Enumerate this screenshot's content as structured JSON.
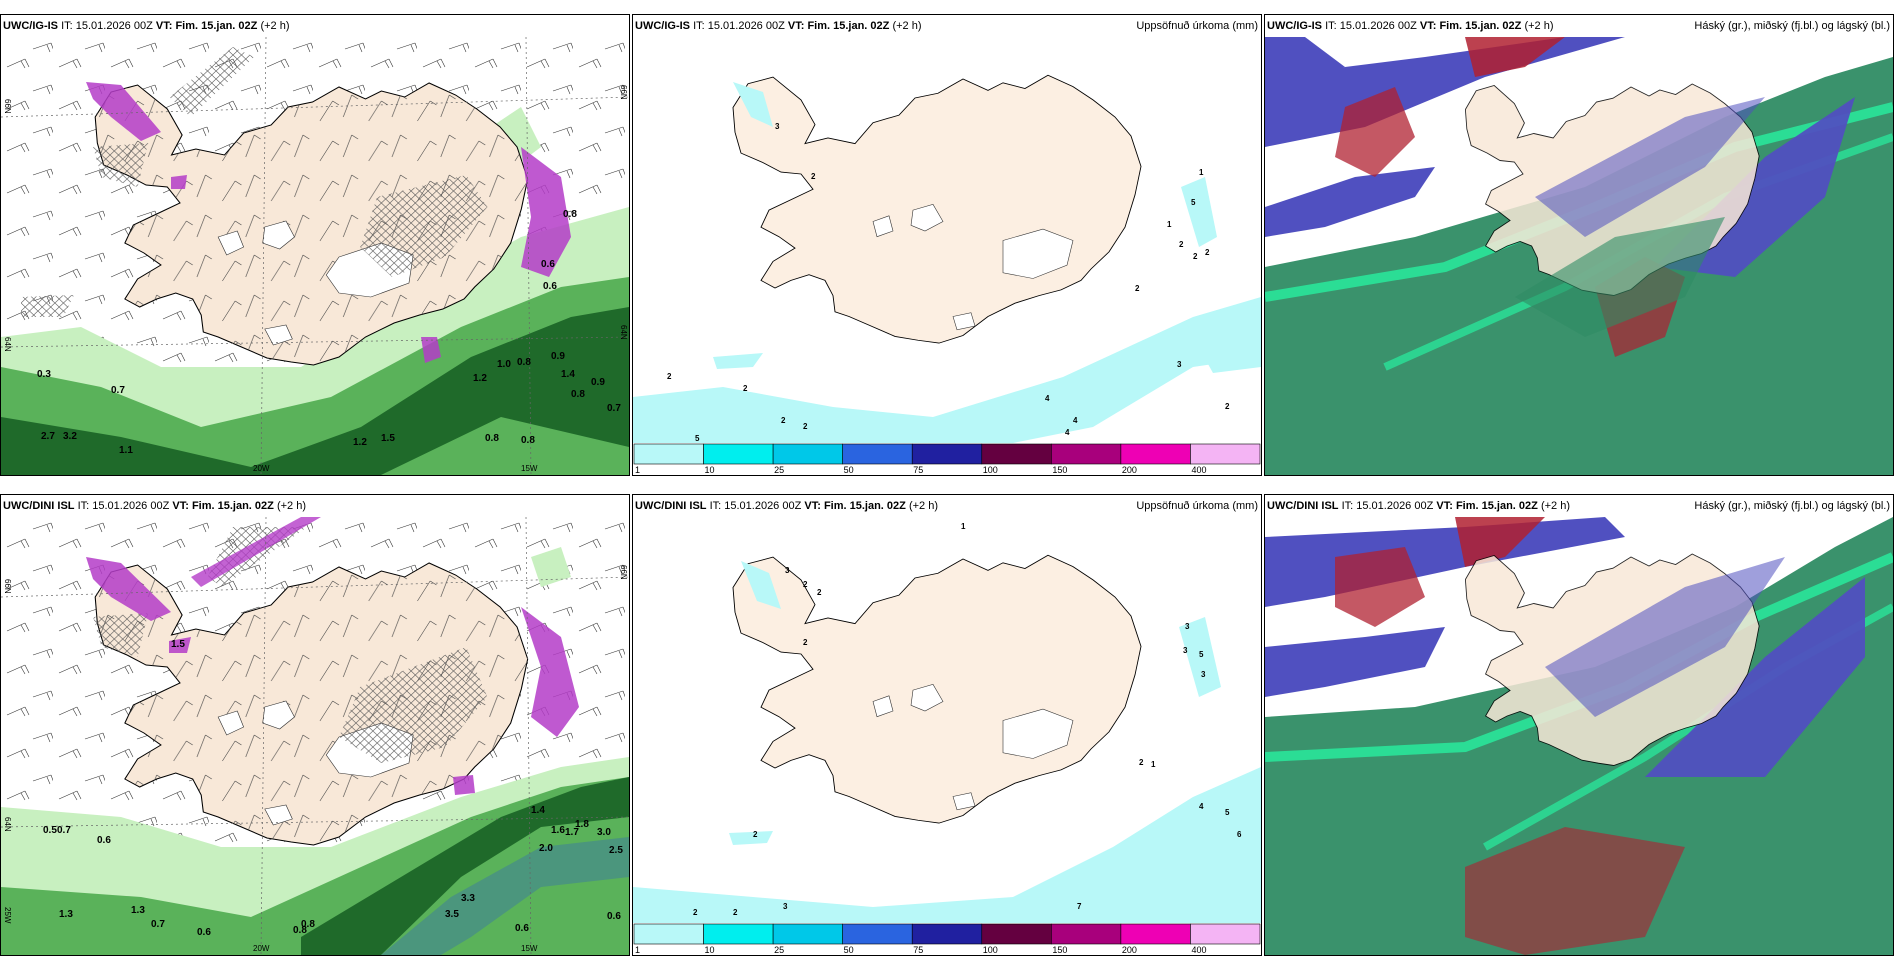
{
  "panels": [
    {
      "model": "UWC/IG-IS",
      "it_label": "IT:",
      "it": "15.01.2026 00Z",
      "vt_label": "VT:",
      "vt": "Fim. 15.jan. 02Z",
      "lead": "(+2 h)",
      "right_title": ""
    },
    {
      "model": "UWC/IG-IS",
      "it_label": "IT:",
      "it": "15.01.2026 00Z",
      "vt_label": "VT:",
      "vt": "Fim. 15.jan. 02Z",
      "lead": "(+2 h)",
      "right_title": "Uppsöfnuð úrkoma (mm)"
    },
    {
      "model": "UWC/IG-IS",
      "it_label": "IT:",
      "it": "15.01.2026 00Z",
      "vt_label": "VT:",
      "vt": "Fim. 15.jan. 02Z",
      "lead": "(+2 h)",
      "right_title": "Háský (gr.), miðský (fj.bl.) og lágský (bl.)"
    },
    {
      "model": "UWC/DINI ISL",
      "it_label": "IT:",
      "it": "15.01.2026 00Z",
      "vt_label": "VT:",
      "vt": "Fim. 15.jan. 02Z",
      "lead": "(+2 h)",
      "right_title": ""
    },
    {
      "model": "UWC/DINI ISL",
      "it_label": "IT:",
      "it": "15.01.2026 00Z",
      "vt_label": "VT:",
      "vt": "Fim. 15.jan. 02Z",
      "lead": "(+2 h)",
      "right_title": "Uppsöfnuð úrkoma (mm)"
    },
    {
      "model": "UWC/DINI ISL",
      "it_label": "IT:",
      "it": "15.01.2026 00Z",
      "vt_label": "VT:",
      "vt": "Fim. 15.jan. 02Z",
      "lead": "(+2 h)",
      "right_title": "Háský (gr.), miðský (fj.bl.) og lágský (bl.)"
    }
  ],
  "axis_labels": {
    "lat_66n": "66N",
    "lat_64n": "64N",
    "lon_20w": "20W",
    "lon_15w": "15W",
    "lon_25w": "25W"
  },
  "colorbar": {
    "ticks": [
      "1",
      "10",
      "25",
      "50",
      "75",
      "100",
      "150",
      "200",
      "400"
    ],
    "colors": [
      "#b8f8f8",
      "#00eeee",
      "#00c8e8",
      "#2a64e0",
      "#2020a0",
      "#640040",
      "#a8007c",
      "#ee00b4",
      "#f4b4f4"
    ]
  },
  "precip_labels_ig": [
    "3",
    "2",
    "1",
    "5",
    "1",
    "2",
    "2",
    "2",
    "2",
    "3",
    "2",
    "2",
    "4",
    "4",
    "4",
    "2",
    "5",
    "2",
    "2"
  ],
  "precip_labels_dini": [
    "1",
    "3",
    "2",
    "2",
    "2",
    "3",
    "3",
    "5",
    "3",
    "2",
    "1",
    "2",
    "2",
    "2",
    "3",
    "7",
    "4",
    "5",
    "6"
  ],
  "snow_labels_ig": [
    "0.3",
    "0.7",
    "1.0",
    "0.8",
    "0.9",
    "1.2",
    "1.4",
    "0.9",
    "0.8",
    "0.7",
    "0.8",
    "0.8",
    "1.1",
    "2.7",
    "3.2",
    "0.6",
    "1.5",
    "1.2",
    "0.8",
    "0.6"
  ],
  "snow_labels_dini": [
    "0.5",
    "0.7",
    "0.6",
    "1.4",
    "1.6",
    "1.7",
    "1.8",
    "3.0",
    "2.0",
    "2.5",
    "3.3",
    "3.5",
    "1.3",
    "0.7",
    "0.6",
    "0.8",
    "0.6",
    "0.8",
    "1.5",
    "0.6"
  ],
  "colors": {
    "land": "#f8e8d8",
    "border": "#000000",
    "snow_light": "#c8f0c0",
    "snow_mid": "#5ab25a",
    "snow_dark": "#1f6a2a",
    "ice_magenta": "#b43cc8",
    "cloud_high": "#b02030",
    "cloud_mid": "#5050c0",
    "cloud_low": "#2f8c64",
    "cloud_edge": "#28f0a0"
  }
}
